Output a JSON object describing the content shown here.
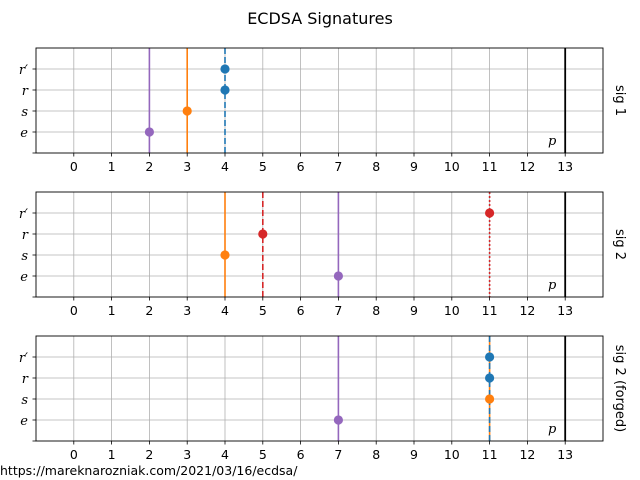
{
  "title": "ECDSA Signatures",
  "footer_url": "https://mareknarozniak.com/2021/03/16/ecdsa/",
  "colors": {
    "blue": "#1f77b4",
    "orange": "#ff7f0e",
    "red": "#d62728",
    "purple": "#9467bd",
    "grid": "#b0b0b0",
    "black": "#000000"
  },
  "chart_data": [
    {
      "type": "scatter",
      "panel_label": "sig 1",
      "x_ticks": [
        0,
        1,
        2,
        3,
        4,
        5,
        6,
        7,
        8,
        9,
        10,
        11,
        12,
        13
      ],
      "xlim": [
        -1,
        14
      ],
      "y_categories": [
        "e",
        "s",
        "r",
        "r′"
      ],
      "grid": true,
      "boundary": {
        "x": 13,
        "label": "p"
      },
      "points": [
        {
          "name": "e",
          "x": 2,
          "y": "e",
          "color": "purple"
        },
        {
          "name": "s",
          "x": 3,
          "y": "s",
          "color": "orange"
        },
        {
          "name": "r",
          "x": 4,
          "y": "r",
          "color": "blue"
        },
        {
          "name": "r′",
          "x": 4,
          "y": "r′",
          "color": "blue"
        }
      ],
      "vlines": [
        {
          "x": 2,
          "color": "purple",
          "style": "solid"
        },
        {
          "x": 3,
          "color": "orange",
          "style": "solid"
        },
        {
          "x": 4,
          "color": "blue",
          "style": "dashed"
        }
      ]
    },
    {
      "type": "scatter",
      "panel_label": "sig 2",
      "x_ticks": [
        0,
        1,
        2,
        3,
        4,
        5,
        6,
        7,
        8,
        9,
        10,
        11,
        12,
        13
      ],
      "xlim": [
        -1,
        14
      ],
      "y_categories": [
        "e",
        "s",
        "r",
        "r′"
      ],
      "grid": true,
      "boundary": {
        "x": 13,
        "label": "p"
      },
      "points": [
        {
          "name": "e",
          "x": 7,
          "y": "e",
          "color": "purple"
        },
        {
          "name": "s",
          "x": 4,
          "y": "s",
          "color": "orange"
        },
        {
          "name": "r",
          "x": 5,
          "y": "r",
          "color": "red"
        },
        {
          "name": "r′",
          "x": 11,
          "y": "r′",
          "color": "red"
        }
      ],
      "vlines": [
        {
          "x": 4,
          "color": "orange",
          "style": "solid"
        },
        {
          "x": 5,
          "color": "red",
          "style": "dashed"
        },
        {
          "x": 7,
          "color": "purple",
          "style": "solid"
        },
        {
          "x": 11,
          "color": "red",
          "style": "dotted"
        }
      ]
    },
    {
      "type": "scatter",
      "panel_label": "sig 2 (forged)",
      "x_ticks": [
        0,
        1,
        2,
        3,
        4,
        5,
        6,
        7,
        8,
        9,
        10,
        11,
        12,
        13
      ],
      "xlim": [
        -1,
        14
      ],
      "y_categories": [
        "e",
        "s",
        "r",
        "r′"
      ],
      "grid": true,
      "boundary": {
        "x": 13,
        "label": "p"
      },
      "points": [
        {
          "name": "e",
          "x": 7,
          "y": "e",
          "color": "purple"
        },
        {
          "name": "s",
          "x": 11,
          "y": "s",
          "color": "orange"
        },
        {
          "name": "r",
          "x": 11,
          "y": "r",
          "color": "blue"
        },
        {
          "name": "r′",
          "x": 11,
          "y": "r′",
          "color": "blue"
        }
      ],
      "vlines": [
        {
          "x": 7,
          "color": "purple",
          "style": "solid"
        },
        {
          "x": 11,
          "color": "orange",
          "style": "solid"
        },
        {
          "x": 11,
          "color": "blue",
          "style": "dashed"
        }
      ]
    }
  ]
}
